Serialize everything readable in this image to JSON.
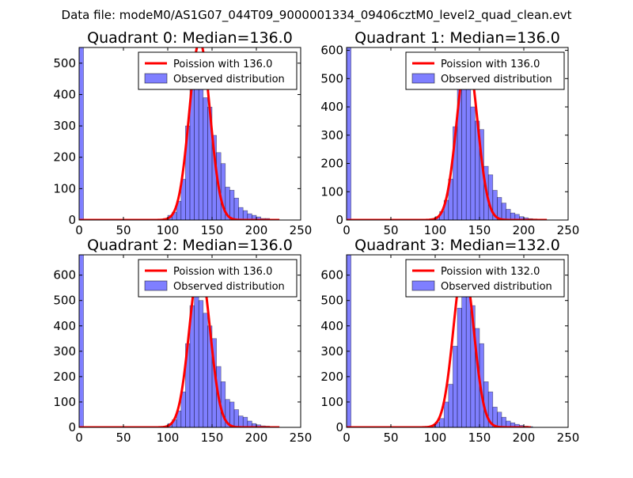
{
  "figure_title": "Data file: modeM0/AS1G07_044T09_9000001334_09406cztM0_level2_quad_clean.evt",
  "chart_data": [
    {
      "type": "bar",
      "title": "Quadrant 0: Median=136.0",
      "xlim": [
        0,
        250
      ],
      "ylim": [
        0,
        550
      ],
      "xticks": [
        0,
        50,
        100,
        150,
        200,
        250
      ],
      "yticks": [
        0,
        100,
        200,
        300,
        400,
        500
      ],
      "legend": [
        "Poission with 136.0",
        "Observed distribution"
      ],
      "legend_position": "top-right",
      "poisson_mean": 136.0,
      "poisson_peak": 570,
      "poisson_range": [
        0,
        226
      ],
      "bin_width": 5,
      "bins": [
        [
          0,
          550
        ],
        [
          95,
          5
        ],
        [
          100,
          15
        ],
        [
          105,
          25
        ],
        [
          110,
          60
        ],
        [
          115,
          130
        ],
        [
          120,
          300
        ],
        [
          125,
          430
        ],
        [
          130,
          470
        ],
        [
          135,
          440
        ],
        [
          140,
          390
        ],
        [
          145,
          360
        ],
        [
          150,
          270
        ],
        [
          155,
          215
        ],
        [
          160,
          180
        ],
        [
          165,
          105
        ],
        [
          170,
          95
        ],
        [
          175,
          70
        ],
        [
          180,
          40
        ],
        [
          185,
          30
        ],
        [
          190,
          20
        ],
        [
          195,
          15
        ],
        [
          200,
          10
        ],
        [
          205,
          5
        ],
        [
          210,
          5
        ],
        [
          215,
          3
        ],
        [
          220,
          2
        ]
      ]
    },
    {
      "type": "bar",
      "title": "Quadrant 1: Median=136.0",
      "xlim": [
        0,
        250
      ],
      "ylim": [
        0,
        610
      ],
      "xticks": [
        0,
        50,
        100,
        150,
        200,
        250
      ],
      "yticks": [
        0,
        100,
        200,
        300,
        400,
        500,
        600
      ],
      "legend": [
        "Poission with 136.0",
        "Observed distribution"
      ],
      "legend_position": "top-right",
      "poisson_mean": 136.0,
      "poisson_peak": 580,
      "poisson_range": [
        0,
        226
      ],
      "bin_width": 5,
      "bins": [
        [
          0,
          610
        ],
        [
          95,
          5
        ],
        [
          100,
          12
        ],
        [
          105,
          30
        ],
        [
          110,
          70
        ],
        [
          115,
          145
        ],
        [
          120,
          330
        ],
        [
          125,
          480
        ],
        [
          130,
          520
        ],
        [
          135,
          480
        ],
        [
          140,
          400
        ],
        [
          145,
          350
        ],
        [
          150,
          320
        ],
        [
          155,
          190
        ],
        [
          160,
          160
        ],
        [
          165,
          105
        ],
        [
          170,
          80
        ],
        [
          175,
          60
        ],
        [
          180,
          38
        ],
        [
          185,
          25
        ],
        [
          190,
          20
        ],
        [
          195,
          12
        ],
        [
          200,
          8
        ],
        [
          205,
          5
        ],
        [
          210,
          4
        ],
        [
          215,
          2
        ],
        [
          220,
          2
        ]
      ]
    },
    {
      "type": "bar",
      "title": "Quadrant 2: Median=136.0",
      "xlim": [
        0,
        250
      ],
      "ylim": [
        0,
        680
      ],
      "xticks": [
        0,
        50,
        100,
        150,
        200,
        250
      ],
      "yticks": [
        0,
        100,
        200,
        300,
        400,
        500,
        600
      ],
      "legend": [
        "Poission with 136.0",
        "Observed distribution"
      ],
      "legend_position": "top-right",
      "poisson_mean": 136.0,
      "poisson_peak": 640,
      "poisson_range": [
        0,
        226
      ],
      "bin_width": 5,
      "bins": [
        [
          0,
          680
        ],
        [
          95,
          5
        ],
        [
          100,
          15
        ],
        [
          105,
          30
        ],
        [
          110,
          65
        ],
        [
          115,
          140
        ],
        [
          120,
          330
        ],
        [
          125,
          480
        ],
        [
          130,
          630
        ],
        [
          135,
          500
        ],
        [
          140,
          450
        ],
        [
          145,
          400
        ],
        [
          150,
          350
        ],
        [
          155,
          240
        ],
        [
          160,
          180
        ],
        [
          165,
          110
        ],
        [
          170,
          100
        ],
        [
          175,
          70
        ],
        [
          180,
          45
        ],
        [
          185,
          40
        ],
        [
          190,
          25
        ],
        [
          195,
          15
        ],
        [
          200,
          10
        ],
        [
          205,
          6
        ],
        [
          210,
          5
        ],
        [
          215,
          3
        ],
        [
          220,
          2
        ]
      ]
    },
    {
      "type": "bar",
      "title": "Quadrant 3: Median=132.0",
      "xlim": [
        0,
        250
      ],
      "ylim": [
        0,
        680
      ],
      "xticks": [
        0,
        50,
        100,
        150,
        200,
        250
      ],
      "yticks": [
        0,
        100,
        200,
        300,
        400,
        500,
        600
      ],
      "legend": [
        "Poission with 132.0",
        "Observed distribution"
      ],
      "legend_position": "top-right",
      "poisson_mean": 132.0,
      "poisson_peak": 640,
      "poisson_range": [
        0,
        208
      ],
      "bin_width": 5,
      "bins": [
        [
          0,
          680
        ],
        [
          95,
          5
        ],
        [
          100,
          20
        ],
        [
          105,
          35
        ],
        [
          110,
          100
        ],
        [
          115,
          170
        ],
        [
          120,
          320
        ],
        [
          125,
          470
        ],
        [
          130,
          600
        ],
        [
          135,
          560
        ],
        [
          140,
          480
        ],
        [
          145,
          390
        ],
        [
          150,
          330
        ],
        [
          155,
          180
        ],
        [
          160,
          140
        ],
        [
          165,
          80
        ],
        [
          170,
          60
        ],
        [
          175,
          40
        ],
        [
          180,
          25
        ],
        [
          185,
          18
        ],
        [
          190,
          12
        ],
        [
          195,
          8
        ],
        [
          200,
          5
        ],
        [
          205,
          3
        ]
      ]
    }
  ]
}
